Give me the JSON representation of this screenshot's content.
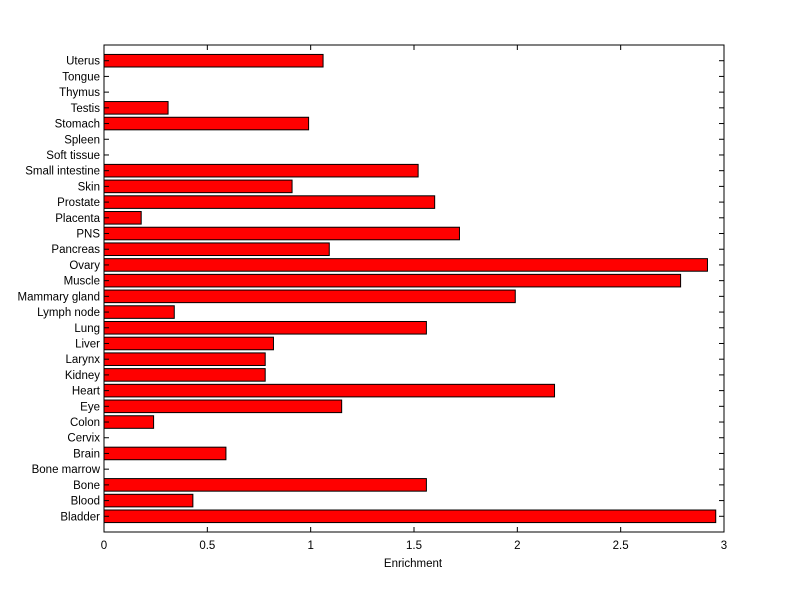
{
  "chart_data": {
    "type": "bar",
    "orientation": "horizontal",
    "title": "",
    "xlabel": "Enrichment",
    "ylabel": "",
    "xlim": [
      0,
      3
    ],
    "x_ticks": [
      "0",
      "0.5",
      "1",
      "1.5",
      "2",
      "2.5",
      "3"
    ],
    "grid": false,
    "bar_color": "#ff0000",
    "edge_color": "#000000",
    "categories": [
      "Bladder",
      "Blood",
      "Bone",
      "Bone marrow",
      "Brain",
      "Cervix",
      "Colon",
      "Eye",
      "Heart",
      "Kidney",
      "Larynx",
      "Liver",
      "Lung",
      "Lymph node",
      "Mammary gland",
      "Muscle",
      "Ovary",
      "Pancreas",
      "PNS",
      "Placenta",
      "Prostate",
      "Skin",
      "Small intestine",
      "Soft tissue",
      "Spleen",
      "Stomach",
      "Testis",
      "Thymus",
      "Tongue",
      "Uterus"
    ],
    "values": [
      2.96,
      0.43,
      1.56,
      0,
      0.59,
      0,
      0.24,
      1.15,
      2.18,
      0.78,
      0.78,
      0.82,
      1.56,
      0.34,
      1.99,
      2.79,
      2.92,
      1.09,
      1.72,
      0.18,
      1.6,
      0.91,
      1.52,
      0,
      0,
      0.99,
      0.31,
      0,
      0,
      1.06
    ]
  }
}
